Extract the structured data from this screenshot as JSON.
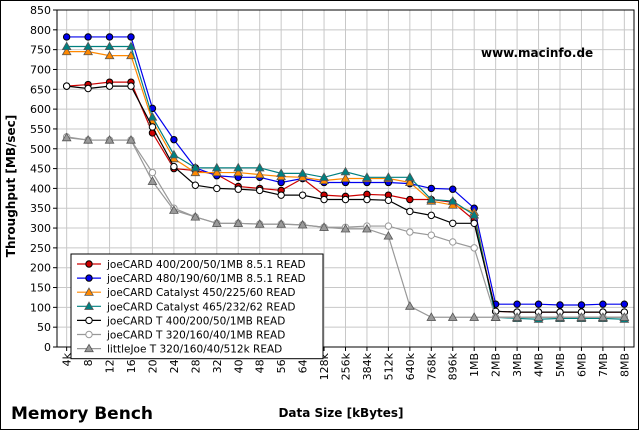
{
  "chart_data": {
    "type": "line",
    "title": "Memory Bench",
    "xlabel": "Data Size [kBytes]",
    "ylabel": "Throughput [MB/sec]",
    "watermark": "www.macinfo.de",
    "ylim": [
      0,
      850
    ],
    "yticks": [
      0,
      50,
      100,
      150,
      200,
      250,
      300,
      350,
      400,
      450,
      500,
      550,
      600,
      650,
      700,
      750,
      800,
      850
    ],
    "grid": true,
    "legend_position": "bottom-left",
    "categories": [
      "4k",
      "8k",
      "12k",
      "16k",
      "20k",
      "24k",
      "28k",
      "32k",
      "40k",
      "48k",
      "56k",
      "64k",
      "128k",
      "256k",
      "384k",
      "512k",
      "640k",
      "768k",
      "896k",
      "1MB",
      "2MB",
      "3MB",
      "4MB",
      "5MB",
      "6MB",
      "7MB",
      "8MB"
    ],
    "series": [
      {
        "name": "joeCARD 400/200/50/1MB 8.5.1 READ",
        "color": "#cc0000",
        "marker": "circle",
        "filled": true,
        "values": [
          658,
          662,
          668,
          668,
          540,
          450,
          445,
          435,
          405,
          400,
          395,
          425,
          383,
          380,
          385,
          383,
          372,
          372,
          365,
          320,
          90,
          88,
          88,
          88,
          88,
          88,
          88
        ]
      },
      {
        "name": "joeCARD 480/190/60/1MB 8.5.1 READ",
        "color": "#0000ee",
        "marker": "circle",
        "filled": true,
        "values": [
          782,
          782,
          782,
          782,
          602,
          523,
          452,
          432,
          428,
          428,
          415,
          425,
          415,
          415,
          415,
          415,
          412,
          400,
          398,
          350,
          108,
          108,
          108,
          106,
          106,
          108,
          108
        ]
      },
      {
        "name": "joeCARD Catalyst 450/225/60 READ",
        "color": "#ff8800",
        "marker": "triangle",
        "filled": true,
        "values": [
          745,
          745,
          735,
          735,
          570,
          475,
          440,
          440,
          440,
          435,
          430,
          428,
          420,
          425,
          425,
          425,
          415,
          368,
          358,
          340,
          75,
          75,
          75,
          75,
          75,
          75,
          75
        ]
      },
      {
        "name": "joeCARD Catalyst 465/232/62 READ",
        "color": "#008080",
        "marker": "triangle",
        "filled": true,
        "values": [
          758,
          758,
          758,
          758,
          580,
          485,
          452,
          452,
          452,
          452,
          438,
          438,
          428,
          442,
          428,
          428,
          428,
          372,
          368,
          333,
          75,
          72,
          70,
          72,
          72,
          72,
          70
        ]
      },
      {
        "name": "joeCARD T 400/200/50/1MB READ",
        "color": "#000000",
        "marker": "circle",
        "filled": false,
        "values": [
          658,
          652,
          658,
          658,
          555,
          455,
          408,
          400,
          398,
          395,
          383,
          383,
          372,
          372,
          372,
          370,
          342,
          332,
          312,
          312,
          90,
          88,
          88,
          88,
          88,
          88,
          88
        ]
      },
      {
        "name": "joeCARD T 320/160/40/1MB READ",
        "color": "#999999",
        "marker": "circle",
        "filled": false,
        "values": [
          530,
          522,
          522,
          522,
          440,
          350,
          328,
          312,
          312,
          310,
          310,
          308,
          302,
          302,
          305,
          305,
          290,
          282,
          265,
          250,
          75,
          75,
          75,
          75,
          75,
          75,
          75
        ]
      },
      {
        "name": "littleJoe T 320/160/40/512k READ",
        "color": "#999999",
        "marker": "triangle",
        "filled": true,
        "values": [
          528,
          522,
          522,
          522,
          418,
          345,
          328,
          312,
          312,
          310,
          310,
          308,
          302,
          298,
          298,
          280,
          103,
          75,
          75,
          75,
          75,
          75,
          75,
          75,
          75,
          75,
          75
        ]
      }
    ]
  }
}
